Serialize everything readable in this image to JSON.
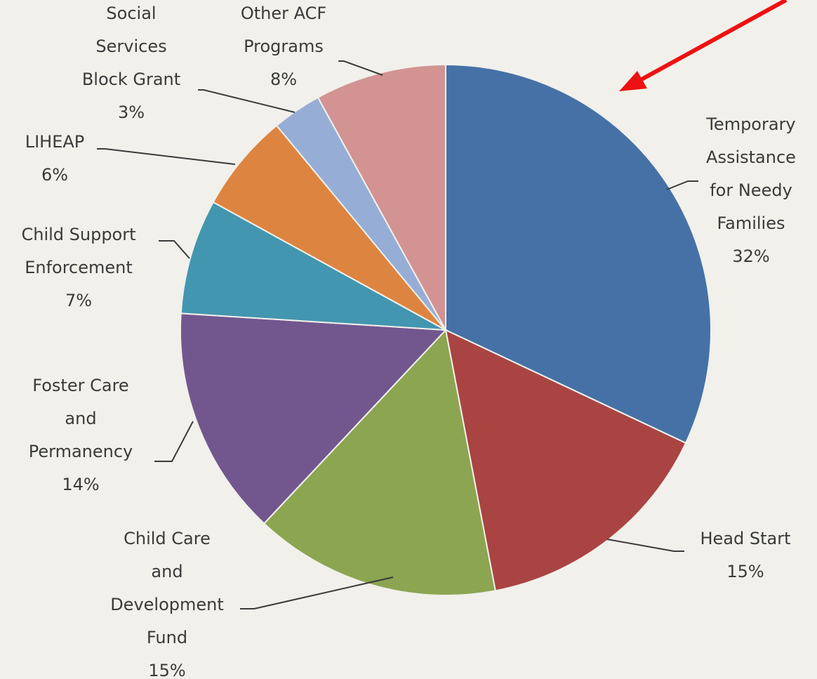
{
  "chart_data": {
    "type": "pie",
    "slices": [
      {
        "name": "Temporary Assistance for Needy Families",
        "label_lines": [
          "Temporary",
          "Assistance",
          "for Needy",
          "Families"
        ],
        "value": 32,
        "value_label": "32%",
        "color": "#4571a6"
      },
      {
        "name": "Head Start",
        "label_lines": [
          "Head Start"
        ],
        "value": 15,
        "value_label": "15%",
        "color": "#a94442"
      },
      {
        "name": "Child Care and Development Fund",
        "label_lines": [
          "Child Care",
          "and",
          "Development",
          "Fund"
        ],
        "value": 15,
        "value_label": "15%",
        "color": "#8ba551"
      },
      {
        "name": "Foster Care and Permanency",
        "label_lines": [
          "Foster Care",
          "and",
          "Permanency"
        ],
        "value": 14,
        "value_label": "14%",
        "color": "#72578f"
      },
      {
        "name": "Child Support Enforcement",
        "label_lines": [
          "Child Support",
          "Enforcement"
        ],
        "value": 7,
        "value_label": "7%",
        "color": "#4396af"
      },
      {
        "name": "LIHEAP",
        "label_lines": [
          "LIHEAP"
        ],
        "value": 6,
        "value_label": "6%",
        "color": "#dd8440"
      },
      {
        "name": "Social Services Block Grant",
        "label_lines": [
          "Social",
          "Services",
          "Block Grant"
        ],
        "value": 3,
        "value_label": "3%",
        "color": "#96aed6"
      },
      {
        "name": "Other ACF Programs",
        "label_lines": [
          "Other ACF",
          "Programs"
        ],
        "value": 8,
        "value_label": "8%",
        "color": "#d39393"
      }
    ],
    "annotation": {
      "type": "arrow",
      "color": "#ee1111",
      "points_to": "Temporary Assistance for Needy Families"
    }
  }
}
